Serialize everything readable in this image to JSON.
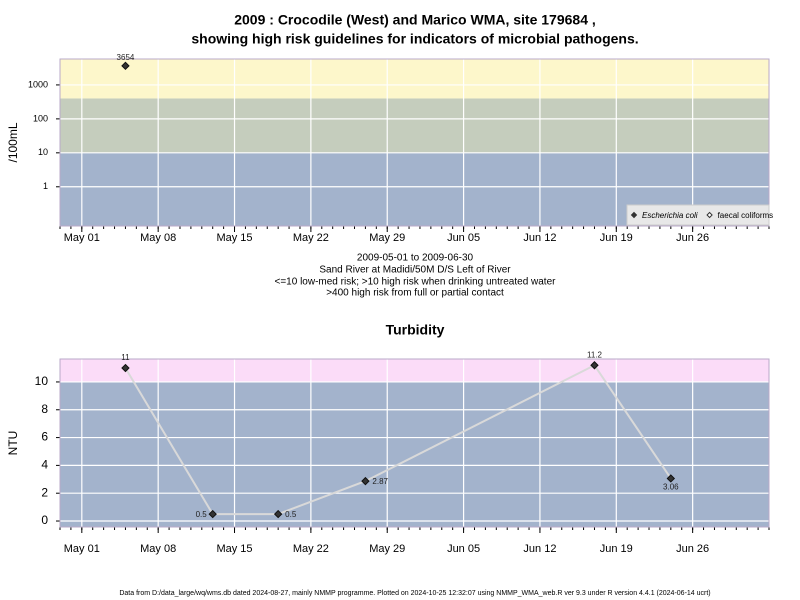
{
  "chart_data": [
    {
      "type": "scatter",
      "title": [
        "2009 : Crocodile (West) and Marico WMA, site 179684 ,",
        "showing high risk guidelines for indicators of microbial pathogens."
      ],
      "notes": [
        "2009-05-01 to 2009-06-30",
        "Sand River at Madidi/50M D/S Left of River",
        "<=10 low-med risk; >10 high risk when drinking untreated water",
        ">400 high risk from full or partial contact"
      ],
      "y_label": "/100mL",
      "log_y": true,
      "x": [
        "May 05"
      ],
      "series": [
        {
          "name": "Escherichia coli",
          "color": "#333333",
          "values": [
            3654
          ]
        },
        {
          "name": "faecal coliforms",
          "color": "#333333",
          "values": [
            null
          ]
        }
      ],
      "xlim": [
        "Apr 29",
        "Jul 03"
      ],
      "xticks": [
        "May 01",
        "May 08",
        "May 15",
        "May 22",
        "May 29",
        "Jun 05",
        "Jun 12",
        "Jun 19",
        "Jun 26"
      ],
      "ylim": [
        0.07,
        5800
      ],
      "yticks": [
        1,
        10,
        100,
        1000
      ],
      "thresholds": [
        10,
        400
      ],
      "band_colors": [
        "#a3b3cc",
        "#c5cdbd",
        "#fdf7cb"
      ],
      "grid": true,
      "legend": "bottom-right"
    },
    {
      "type": "line",
      "title": "Turbidity",
      "y_label": "NTU",
      "log_y": false,
      "x": [
        "May 05",
        "May 13",
        "May 19",
        "May 27",
        "Jun 17",
        "Jun 24"
      ],
      "series": [
        {
          "name": "Turbidity",
          "color": "#d9d9d9",
          "values": [
            11,
            0.5,
            0.5,
            2.87,
            11.2,
            3.06
          ]
        }
      ],
      "xlim": [
        "Apr 29",
        "Jul 03"
      ],
      "xticks": [
        "May 01",
        "May 08",
        "May 15",
        "May 22",
        "May 29",
        "Jun 05",
        "Jun 12",
        "Jun 19",
        "Jun 26"
      ],
      "ylim": [
        -0.43,
        11.65
      ],
      "yticks": [
        0,
        2,
        4,
        6,
        8,
        10
      ],
      "thresholds": [
        10
      ],
      "band_colors": [
        "#a3b3cc",
        "#fbdcf8"
      ],
      "grid": true
    }
  ],
  "footer": "Data from D:/data_large/wq/wms.db dated 2024-08-27, mainly NMMP programme. Plotted on 2024-10-25 12:32:07 using NMMP_WMA_web.R ver 9.3 under R version 4.4.1 (2024-06-14 ucrt)"
}
